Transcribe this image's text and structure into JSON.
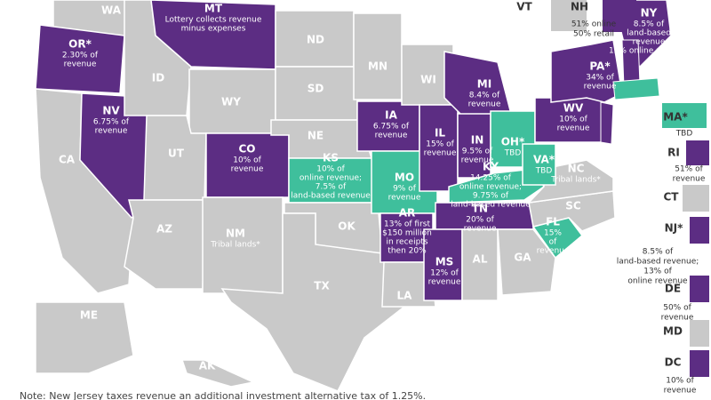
{
  "states": [
    {
      "abbr": "WA",
      "color": "#c9c9c9"
    },
    {
      "abbr": "OR*",
      "note": [
        "2.30% of",
        "revenue"
      ],
      "color": "#5c2d83"
    },
    {
      "abbr": "CA",
      "color": "#c9c9c9"
    },
    {
      "abbr": "NV",
      "note": [
        "6.75% of",
        "revenue"
      ],
      "color": "#5c2d83"
    },
    {
      "abbr": "ID",
      "color": "#c9c9c9"
    },
    {
      "abbr": "MT",
      "note": [
        "Lottery collects revenue",
        "minus expenses"
      ],
      "color": "#5c2d83"
    },
    {
      "abbr": "WY",
      "color": "#c9c9c9"
    },
    {
      "abbr": "UT",
      "color": "#c9c9c9"
    },
    {
      "abbr": "AZ",
      "color": "#c9c9c9"
    },
    {
      "abbr": "CO",
      "note": [
        "10% of",
        "revenue"
      ],
      "color": "#5c2d83"
    },
    {
      "abbr": "NM",
      "note": [
        "Tribal lands*"
      ],
      "color": "#c9c9c9"
    },
    {
      "abbr": "ND",
      "color": "#c9c9c9"
    },
    {
      "abbr": "SD",
      "color": "#c9c9c9"
    },
    {
      "abbr": "NE",
      "color": "#c9c9c9"
    },
    {
      "abbr": "KS",
      "note": [
        "10% of",
        "online revenue;",
        "7.5% of",
        "land-based revenue"
      ],
      "color": "#3fbf9c"
    },
    {
      "abbr": "OK",
      "color": "#c9c9c9"
    },
    {
      "abbr": "TX",
      "color": "#c9c9c9"
    },
    {
      "abbr": "MN",
      "color": "#c9c9c9"
    },
    {
      "abbr": "IA",
      "note": [
        "6.75% of",
        "revenue"
      ],
      "color": "#5c2d83"
    },
    {
      "abbr": "MO",
      "note": [
        "9% of",
        "revenue"
      ],
      "color": "#3fbf9c"
    },
    {
      "abbr": "AR",
      "note": [
        "13% of first",
        "$150 million",
        "in receipts",
        "then 20%"
      ],
      "color": "#5c2d83"
    },
    {
      "abbr": "LA",
      "color": "#c9c9c9"
    },
    {
      "abbr": "WI",
      "color": "#c9c9c9"
    },
    {
      "abbr": "IL",
      "note": [
        "15% of",
        "revenue"
      ],
      "color": "#5c2d83"
    },
    {
      "abbr": "MI",
      "note": [
        "8.4% of",
        "revenue"
      ],
      "color": "#5c2d83"
    },
    {
      "abbr": "IN",
      "note": [
        "9.5% of",
        "revenue"
      ],
      "color": "#5c2d83"
    },
    {
      "abbr": "OH*",
      "note": [
        "TBD"
      ],
      "color": "#3fbf9c"
    },
    {
      "abbr": "KY",
      "note": [
        "14.25% of",
        "online revenue;",
        "9.75% of",
        "land-based revenue"
      ],
      "color": "#3fbf9c"
    },
    {
      "abbr": "TN",
      "note": [
        "20% of",
        "revenue"
      ],
      "color": "#5c2d83"
    },
    {
      "abbr": "MS",
      "note": [
        "12% of",
        "revenue"
      ],
      "color": "#5c2d83"
    },
    {
      "abbr": "AL",
      "color": "#c9c9c9"
    },
    {
      "abbr": "GA",
      "color": "#c9c9c9"
    },
    {
      "abbr": "FL",
      "note": [
        "15%",
        "of",
        "revenue"
      ],
      "color": "#3fbf9c"
    },
    {
      "abbr": "SC",
      "color": "#c9c9c9"
    },
    {
      "abbr": "NC",
      "note": [
        "Tribal lands*"
      ],
      "color": "#c9c9c9"
    },
    {
      "abbr": "VA*",
      "note": [
        "TBD"
      ],
      "color": "#3fbf9c"
    },
    {
      "abbr": "WV",
      "note": [
        "10% of",
        "revenue"
      ],
      "color": "#5c2d83"
    },
    {
      "abbr": "PA*",
      "note": [
        "34% of",
        "revenue"
      ],
      "color": "#5c2d83"
    },
    {
      "abbr": "NY",
      "note": [
        "8.5% of",
        "land-based",
        "revenue",
        "12% online revenue"
      ],
      "color": "#5c2d83"
    },
    {
      "abbr": "ME",
      "color": "#c9c9c9"
    },
    {
      "abbr": "AK",
      "color": "#c9c9c9"
    },
    {
      "abbr": "HI",
      "color": "#c9c9c9"
    }
  ],
  "sidebar": [
    {
      "abbr": "VT",
      "color": "#c9c9c9"
    },
    {
      "abbr": "NH",
      "note": [
        "51% online",
        "50% retail"
      ],
      "color": "#5c2d83"
    },
    {
      "abbr": "MA*",
      "note": [
        "TBD"
      ],
      "color": "#3fbf9c"
    },
    {
      "abbr": "RI",
      "note": [
        "51% of",
        "revenue"
      ],
      "color": "#5c2d83"
    },
    {
      "abbr": "CT",
      "color": "#c9c9c9"
    },
    {
      "abbr": "NJ*",
      "note": [
        "8.5% of",
        "land-based revenue;",
        "13% of",
        "online revenue"
      ],
      "color": "#5c2d83"
    },
    {
      "abbr": "DE",
      "note": [
        "50% of",
        "revenue"
      ],
      "color": "#5c2d83"
    },
    {
      "abbr": "MD",
      "color": "#c9c9c9"
    },
    {
      "abbr": "DC",
      "note": [
        "10% of",
        "revenue"
      ],
      "color": "#5c2d83"
    }
  ],
  "footnote": "Note: New Jersey taxes revenue an additional investment alternative tax of 1.25%."
}
